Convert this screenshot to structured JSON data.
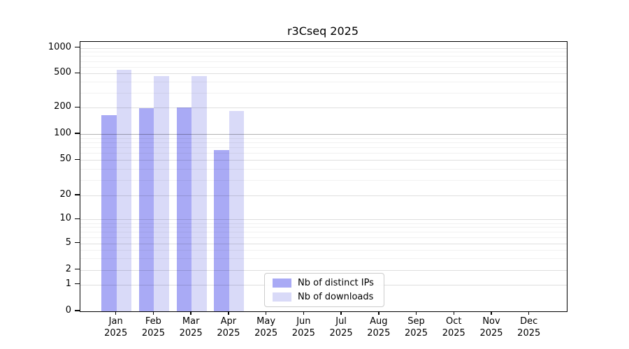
{
  "chart_data": {
    "type": "bar",
    "title": "r3Cseq 2025",
    "categories": [
      "Jan",
      "Feb",
      "Mar",
      "Apr",
      "May",
      "Jun",
      "Jul",
      "Aug",
      "Sep",
      "Oct",
      "Nov",
      "Dec"
    ],
    "x_year_label": "2025",
    "series": [
      {
        "name": "Nb of distinct IPs",
        "color": "#a9aaf5",
        "values": [
          165,
          197,
          200,
          65,
          null,
          null,
          null,
          null,
          null,
          null,
          null,
          null
        ]
      },
      {
        "name": "Nb of downloads",
        "color": "#d9daf8",
        "values": [
          550,
          465,
          465,
          185,
          null,
          null,
          null,
          null,
          null,
          null,
          null,
          null
        ]
      }
    ],
    "y_ticks": [
      0,
      1,
      2,
      5,
      10,
      20,
      50,
      100,
      200,
      500,
      1000
    ],
    "y_scale": "symlog-like",
    "y_tick_fractions": [
      [
        0,
        0
      ],
      [
        1,
        0.0992
      ],
      [
        2,
        0.1536
      ],
      [
        5,
        0.2521
      ],
      [
        10,
        0.3412
      ],
      [
        20,
        0.4301
      ],
      [
        50,
        0.5614
      ],
      [
        100,
        0.658
      ],
      [
        200,
        0.7557
      ],
      [
        500,
        0.8826
      ],
      [
        1000,
        0.9775
      ]
    ],
    "y_minor_gridlines": [
      3,
      4,
      6,
      7,
      8,
      9,
      30,
      40,
      60,
      70,
      80,
      90,
      300,
      400,
      600,
      700,
      800,
      900
    ],
    "grid": true,
    "legend_position": "lower-center-inside",
    "emphasized_gridline_value": 100
  }
}
